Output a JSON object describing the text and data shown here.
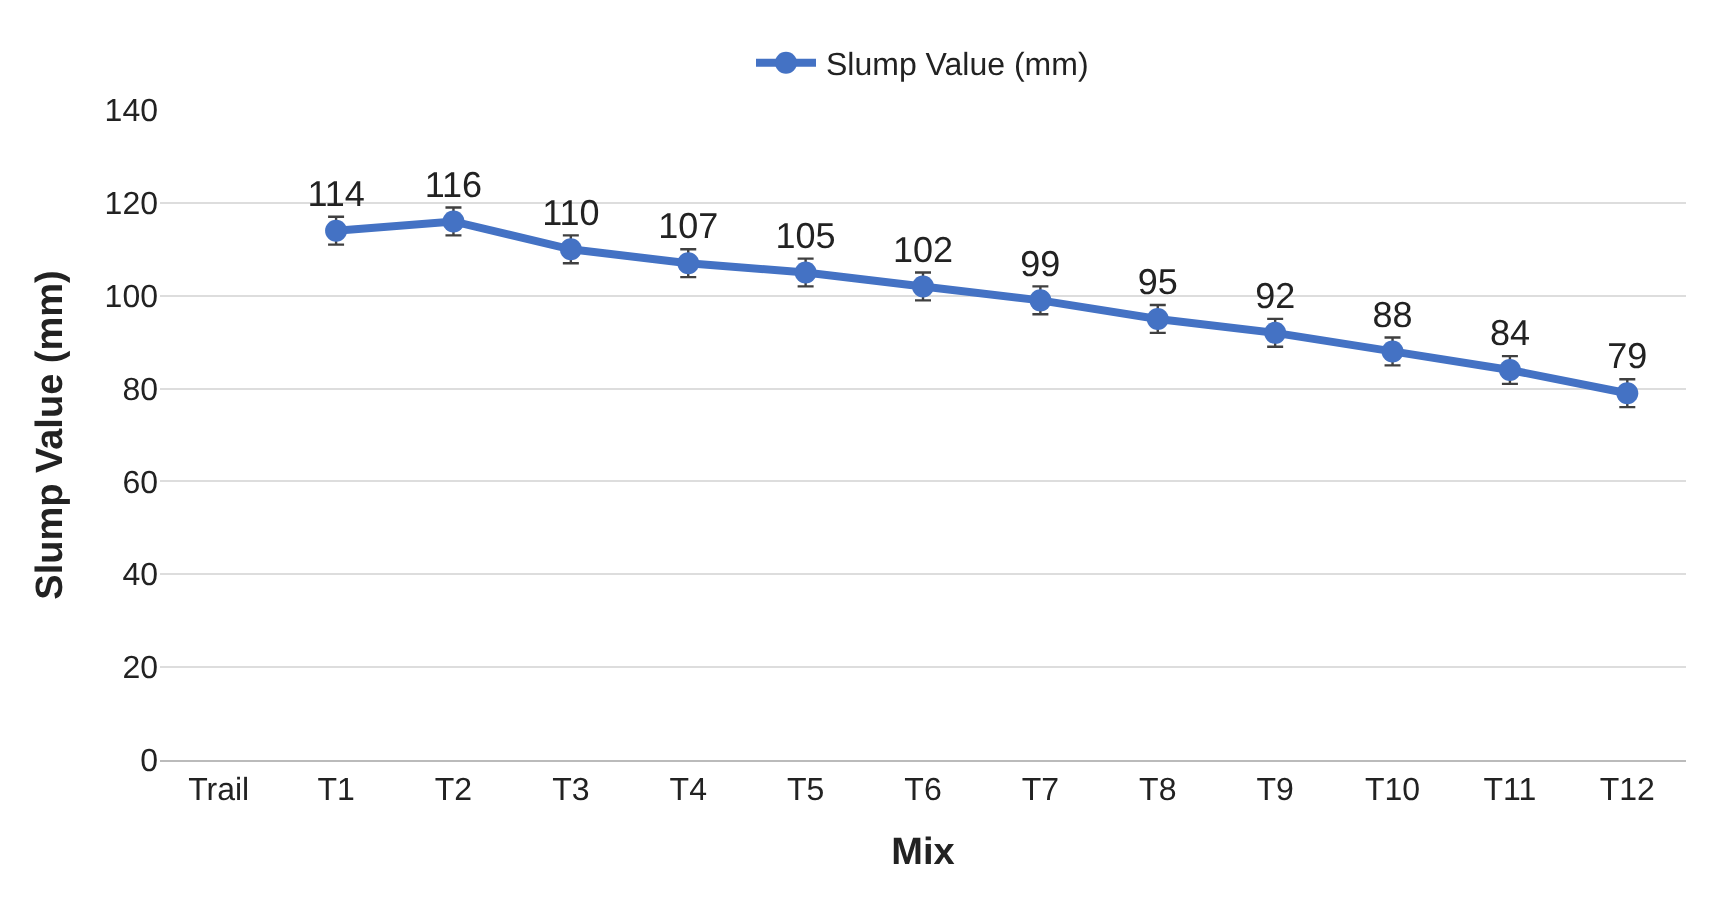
{
  "chart_data": {
    "type": "line",
    "xlabel": "Mix",
    "ylabel": "Slump Value (mm)",
    "categories": [
      "Trail",
      "T1",
      "T2",
      "T3",
      "T4",
      "T5",
      "T6",
      "T7",
      "T8",
      "T9",
      "T10",
      "T11",
      "T12"
    ],
    "series": [
      {
        "name": "Slump Value (mm)",
        "color": "#4472c4",
        "values": [
          null,
          114,
          116,
          110,
          107,
          105,
          102,
          99,
          95,
          92,
          88,
          84,
          79
        ],
        "errors": [
          null,
          3,
          3,
          3,
          3,
          3,
          3,
          3,
          3,
          3,
          3,
          3,
          3
        ]
      }
    ],
    "ylim": [
      0,
      140
    ],
    "yticks": [
      0,
      20,
      40,
      60,
      80,
      100,
      120,
      140
    ],
    "grid": "y",
    "legend": "top",
    "marker": "circle",
    "line_style": "solid",
    "data_labels": true
  }
}
